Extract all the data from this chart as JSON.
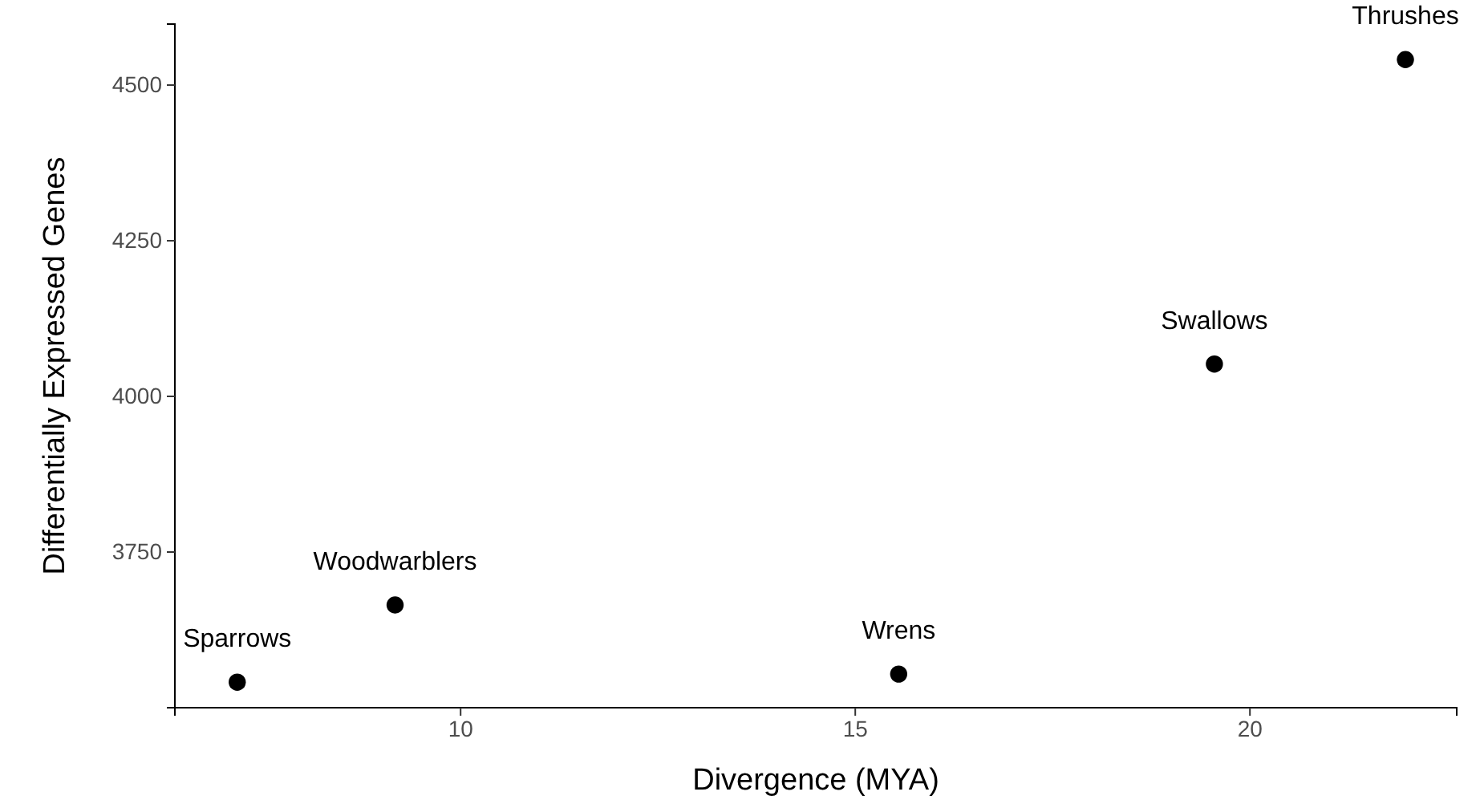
{
  "chart_data": {
    "type": "scatter",
    "xlabel": "Divergence (MYA)",
    "ylabel": "Differentially Expressed Genes",
    "x": [
      7.17,
      9.17,
      15.55,
      19.55,
      21.97
    ],
    "series": [
      {
        "color": "#000000",
        "values": [
          3541,
          3665,
          3554,
          4052,
          4541
        ]
      }
    ],
    "xlim": [
      6.38,
      22.62
    ],
    "ylim": [
      3500,
      4598
    ],
    "xticks": [
      10,
      15,
      20
    ],
    "yticks": [
      3750,
      4000,
      4250,
      4500
    ],
    "marker": "circle",
    "annotations": [
      {
        "text": "Sparrows",
        "x": 7.17,
        "y": 3541
      },
      {
        "text": "Woodwarblers",
        "x": 9.17,
        "y": 3665
      },
      {
        "text": "Wrens",
        "x": 15.55,
        "y": 3554
      },
      {
        "text": "Swallows",
        "x": 19.55,
        "y": 4052
      },
      {
        "text": "Thrushes",
        "x": 21.97,
        "y": 4541
      }
    ]
  }
}
